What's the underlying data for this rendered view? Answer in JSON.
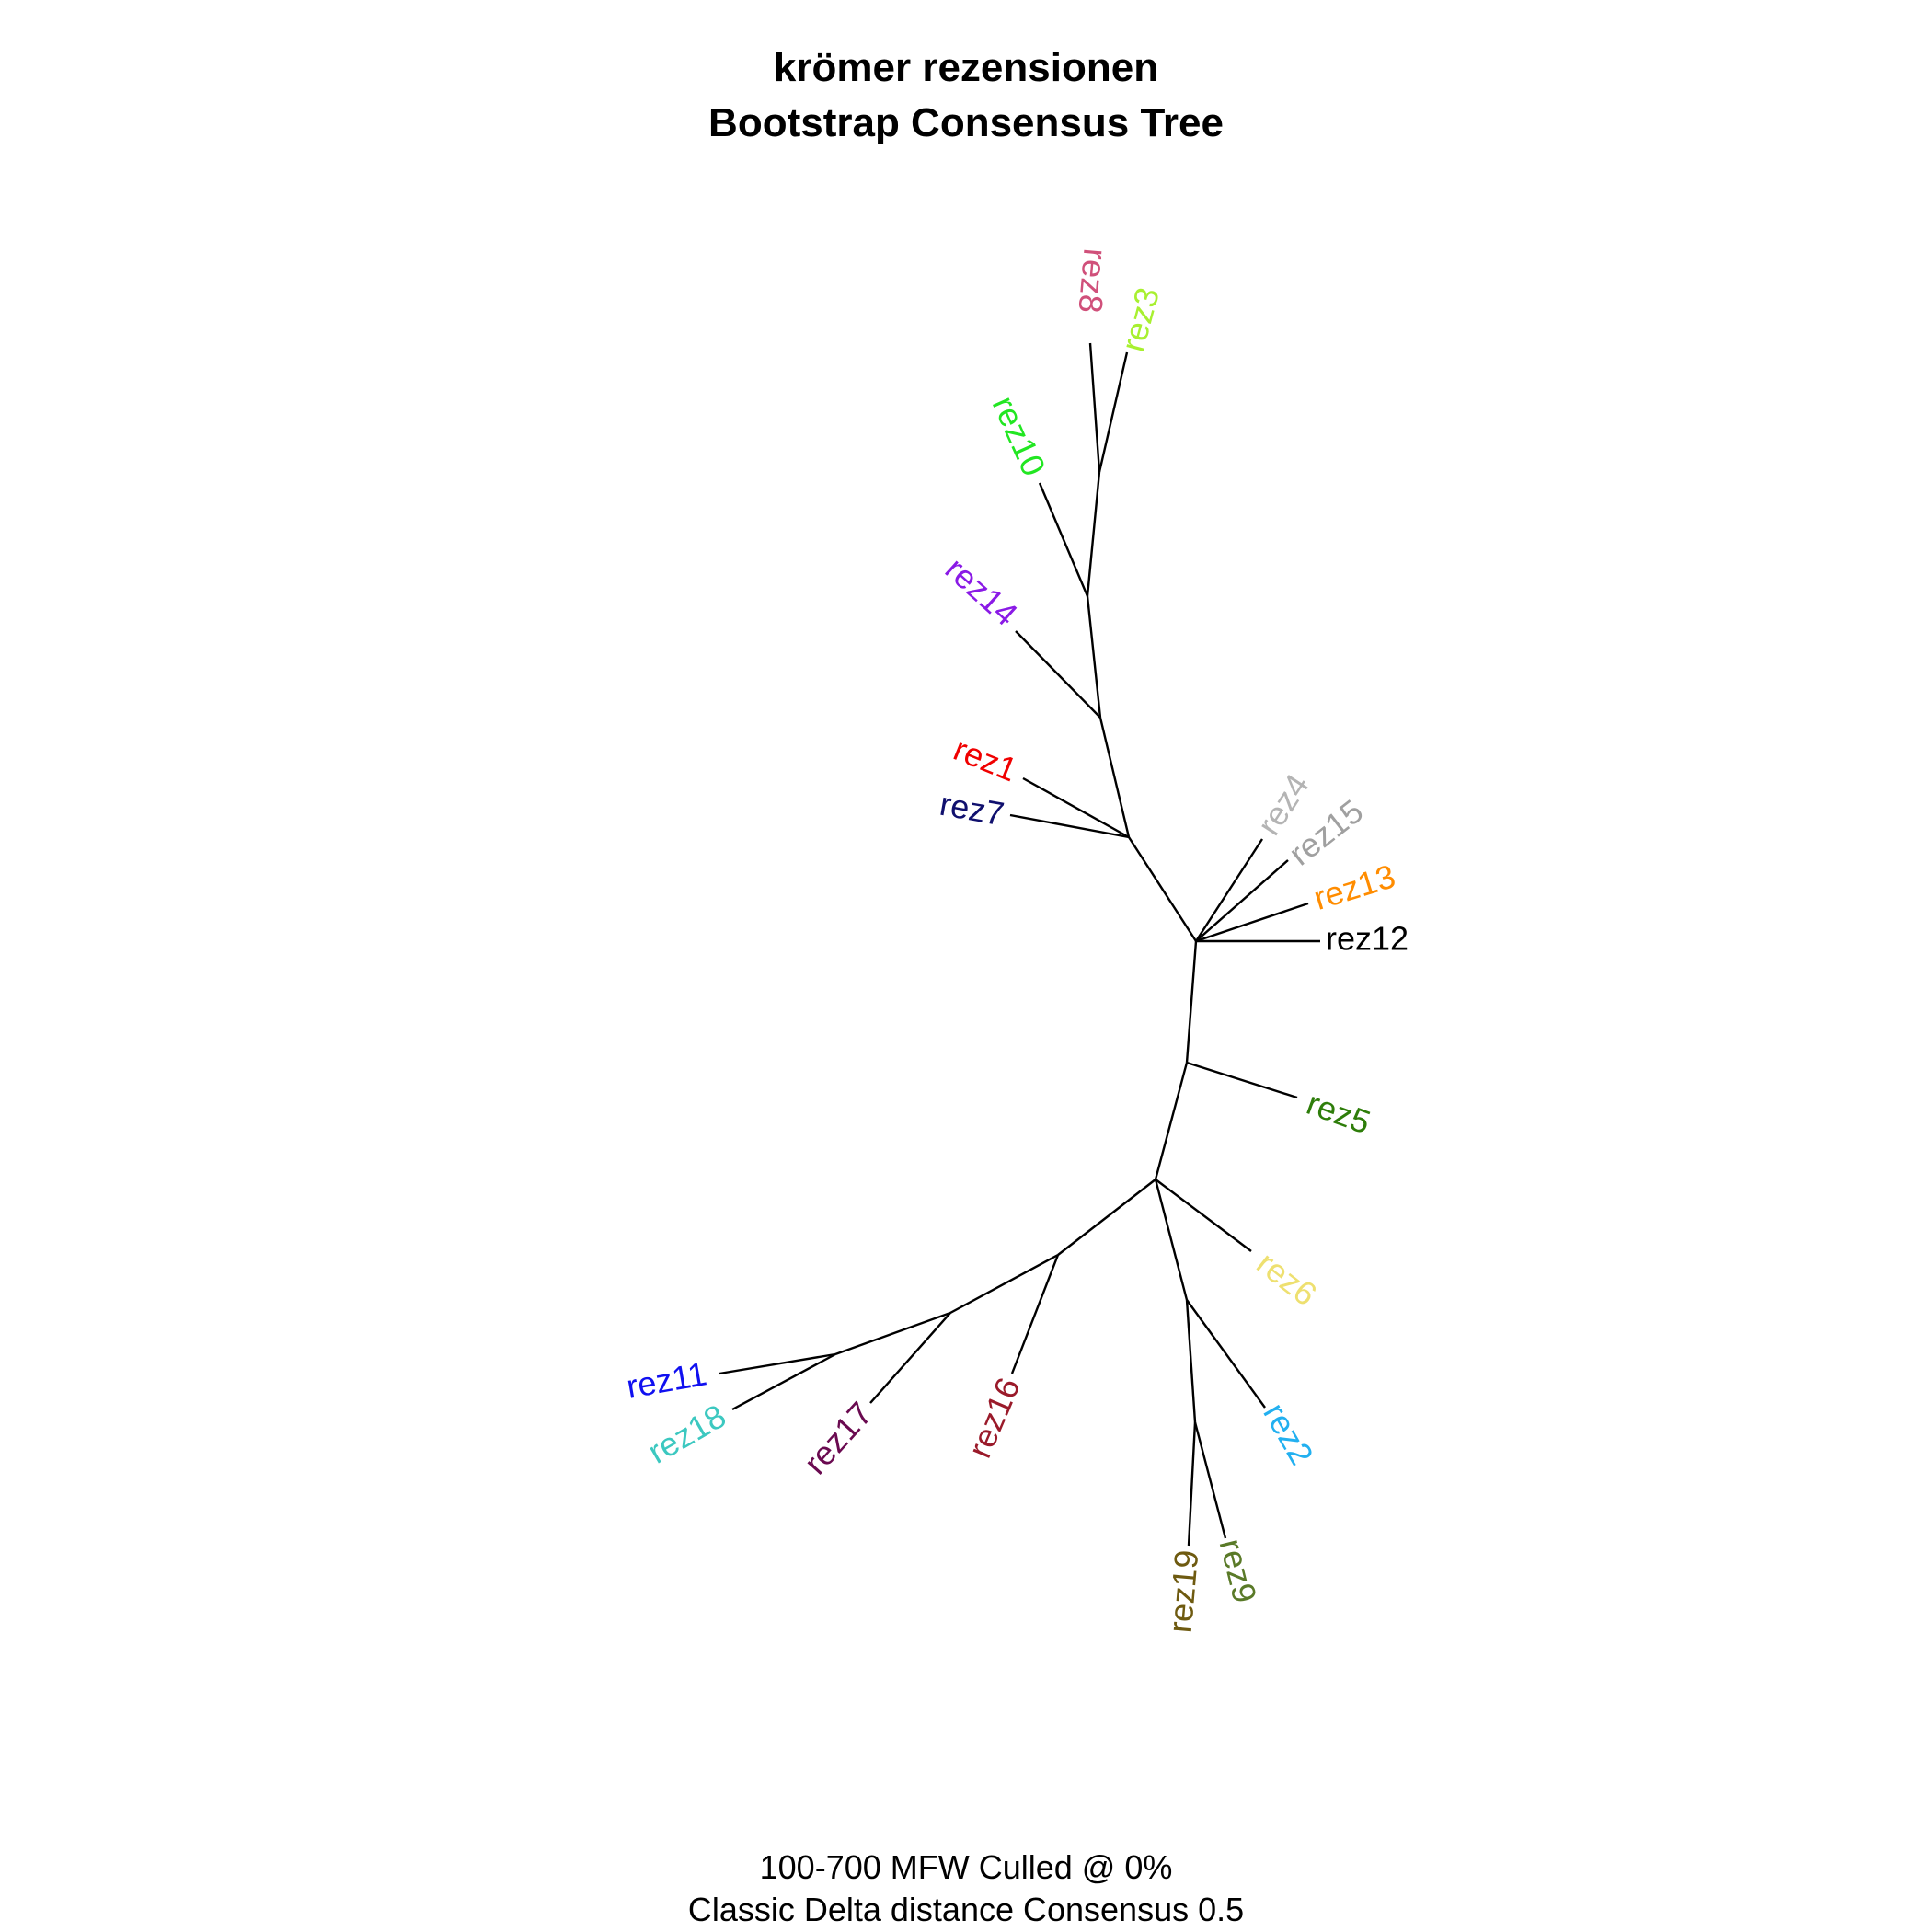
{
  "title": {
    "line1": "krömer rezensionen",
    "line2": "Bootstrap Consensus Tree"
  },
  "caption": {
    "line1": "100-700 MFW  Culled @ 0%",
    "line2": "Classic Delta distance Consensus 0.5"
  },
  "tree": {
    "type": "unrooted-consensus-tree",
    "tips": [
      {
        "id": "rez8",
        "label": "rez8",
        "color": "#D0507A"
      },
      {
        "id": "rez3",
        "label": "rez3",
        "color": "#A8F030"
      },
      {
        "id": "rez10",
        "label": "rez10",
        "color": "#22E622"
      },
      {
        "id": "rez14",
        "label": "rez14",
        "color": "#8A1AE6"
      },
      {
        "id": "rez1",
        "label": "rez1",
        "color": "#F00000"
      },
      {
        "id": "rez7",
        "label": "rez7",
        "color": "#10106E"
      },
      {
        "id": "rez4",
        "label": "rez4",
        "color": "#B4B4B4"
      },
      {
        "id": "rez15",
        "label": "rez15",
        "color": "#A0A0A0"
      },
      {
        "id": "rez13",
        "label": "rez13",
        "color": "#FF8C00"
      },
      {
        "id": "rez12",
        "label": "rez12",
        "color": "#000000"
      },
      {
        "id": "rez5",
        "label": "rez5",
        "color": "#2E7D0A"
      },
      {
        "id": "rez6",
        "label": "rez6",
        "color": "#EEE070"
      },
      {
        "id": "rez2",
        "label": "rez2",
        "color": "#22B0F0"
      },
      {
        "id": "rez9",
        "label": "rez9",
        "color": "#5A7A28"
      },
      {
        "id": "rez19",
        "label": "rez19",
        "color": "#6E5A10"
      },
      {
        "id": "rez16",
        "label": "rez16",
        "color": "#9A1A2A"
      },
      {
        "id": "rez17",
        "label": "rez17",
        "color": "#6A0A50"
      },
      {
        "id": "rez11",
        "label": "rez11",
        "color": "#1010F0"
      },
      {
        "id": "rez18",
        "label": "rez18",
        "color": "#3CC8C0"
      }
    ]
  }
}
